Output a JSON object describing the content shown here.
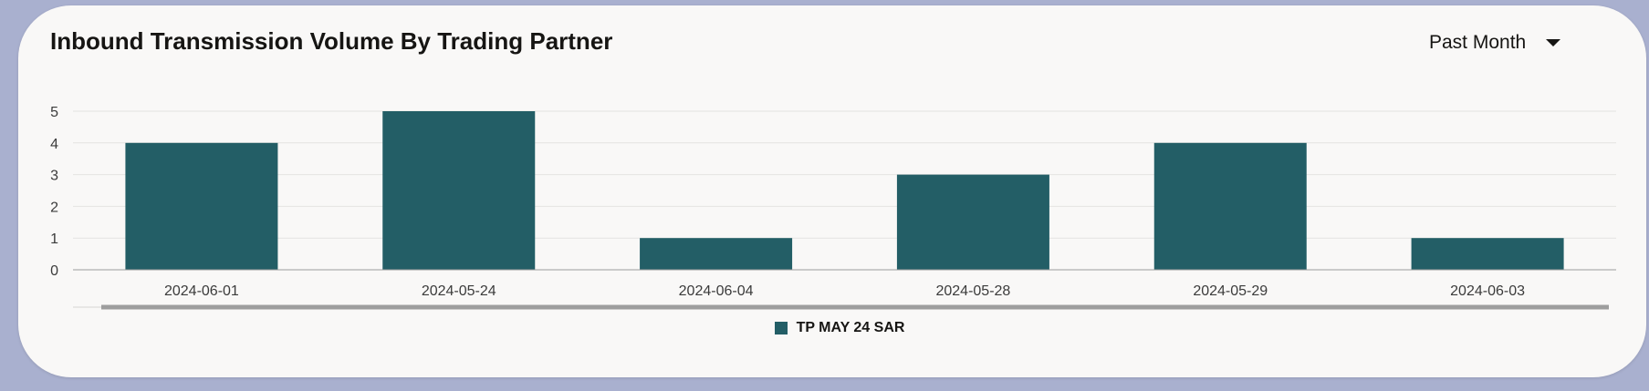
{
  "card": {
    "title": "Inbound Transmission Volume By Trading Partner"
  },
  "period_select": {
    "selected": "Past Month"
  },
  "colors": {
    "bar": "#235e66",
    "gridline": "#e4e3e1",
    "axis": "#9c9c9c",
    "scrollbar": "#9e9e9e",
    "tick_text": "#3b3b3b"
  },
  "chart_data": {
    "type": "bar",
    "categories": [
      "2024-06-01",
      "2024-05-24",
      "2024-06-04",
      "2024-05-28",
      "2024-05-29",
      "2024-06-03"
    ],
    "series": [
      {
        "name": "TP MAY 24 SAR",
        "values": [
          4,
          5,
          1,
          3,
          4,
          1
        ]
      }
    ],
    "ylim": [
      0,
      5
    ],
    "yticks": [
      "0",
      "1",
      "2",
      "3",
      "4",
      "5"
    ],
    "grid": true,
    "legend_position": "bottom",
    "title": "",
    "xlabel": "",
    "ylabel": ""
  }
}
